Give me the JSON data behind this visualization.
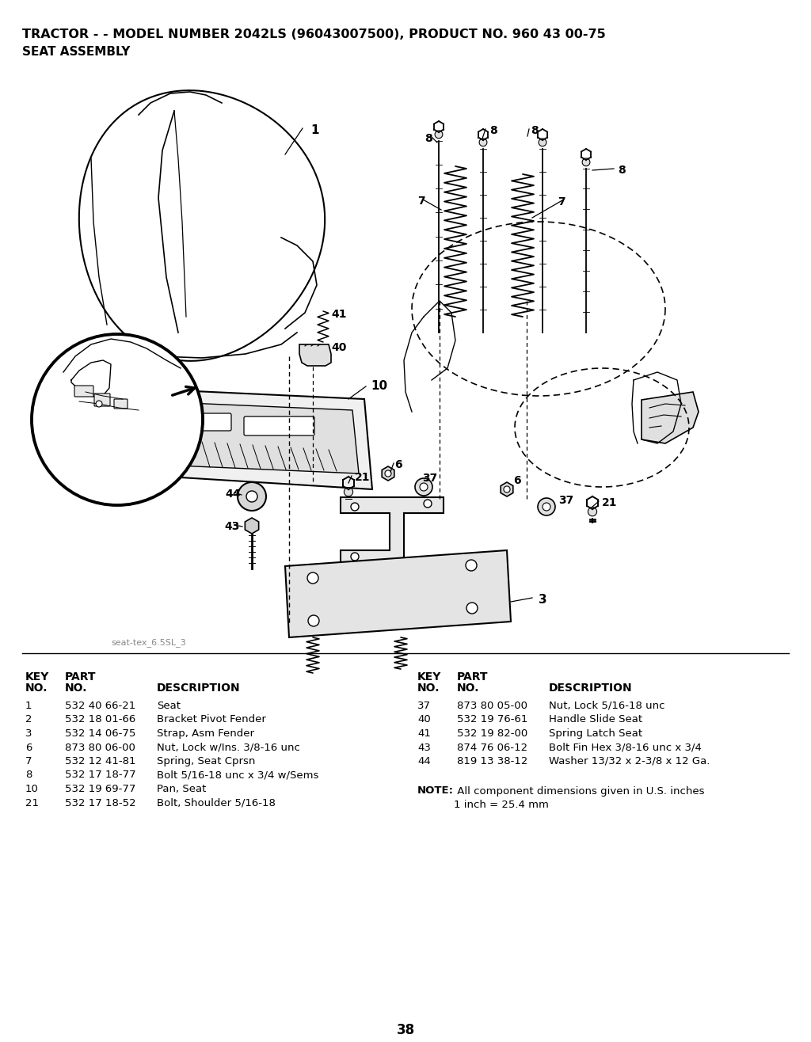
{
  "title_line1": "TRACTOR - - MODEL NUMBER 2042LS (96043007500), PRODUCT NO. 960 43 00-75",
  "title_line2": "SEAT ASSEMBLY",
  "watermark": "seat-tex_6.5SL_3",
  "page_number": "38",
  "bg_color": "#ffffff",
  "left_rows": [
    [
      "1",
      "532 40 66-21",
      "Seat"
    ],
    [
      "2",
      "532 18 01-66",
      "Bracket Pivot Fender"
    ],
    [
      "3",
      "532 14 06-75",
      "Strap, Asm Fender"
    ],
    [
      "6",
      "873 80 06-00",
      "Nut, Lock w/Ins. 3/8-16 unc"
    ],
    [
      "7",
      "532 12 41-81",
      "Spring, Seat Cprsn"
    ],
    [
      "8",
      "532 17 18-77",
      "Bolt 5/16-18 unc x 3/4 w/Sems"
    ],
    [
      "10",
      "532 19 69-77",
      "Pan, Seat"
    ],
    [
      "21",
      "532 17 18-52",
      "Bolt, Shoulder 5/16-18"
    ]
  ],
  "right_rows": [
    [
      "37",
      "873 80 05-00",
      "Nut, Lock 5/16-18 unc"
    ],
    [
      "40",
      "532 19 76-61",
      "Handle Slide Seat"
    ],
    [
      "41",
      "532 19 82-00",
      "Spring Latch Seat"
    ],
    [
      "43",
      "874 76 06-12",
      "Bolt Fin Hex 3/8-16 unc x 3/4"
    ],
    [
      "44",
      "819 13 38-12",
      "Washer 13/32 x 2-3/8 x 12 Ga."
    ]
  ]
}
